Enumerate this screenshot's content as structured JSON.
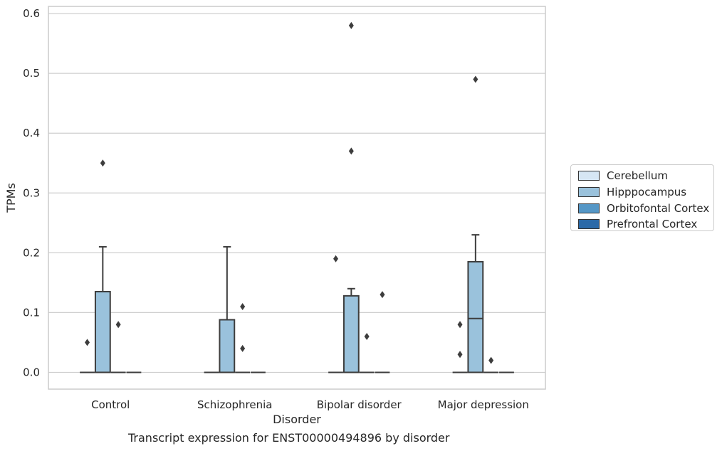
{
  "chart_data": {
    "type": "box",
    "xlabel": "Disorder",
    "ylabel": "TPMs",
    "ylim": [
      -0.028,
      0.612
    ],
    "yticks": [
      "0.0",
      "0.1",
      "0.2",
      "0.3",
      "0.4",
      "0.5",
      "0.6"
    ],
    "ytick_values": [
      0.0,
      0.1,
      0.2,
      0.3,
      0.4,
      0.5,
      0.6
    ],
    "grid": "horizontal",
    "legend_position": "right",
    "categories": [
      "Control",
      "Schizophrenia",
      "Bipolar disorder",
      "Major depression"
    ],
    "series": [
      {
        "name": "Cerebellum",
        "color": "#d6e6f4",
        "boxes": [
          {
            "q1": 0,
            "median": 0,
            "q3": 0,
            "whisker_low": 0,
            "whisker_high": 0,
            "outliers": [
              0.05
            ]
          },
          {
            "q1": 0,
            "median": 0,
            "q3": 0,
            "whisker_low": 0,
            "whisker_high": 0,
            "outliers": []
          },
          {
            "q1": 0,
            "median": 0,
            "q3": 0,
            "whisker_low": 0,
            "whisker_high": 0,
            "outliers": [
              0.19
            ]
          },
          {
            "q1": 0,
            "median": 0,
            "q3": 0,
            "whisker_low": 0,
            "whisker_high": 0,
            "outliers": [
              0.08,
              0.03
            ]
          }
        ]
      },
      {
        "name": "Hipppocampus",
        "color": "#9ac2dc",
        "boxes": [
          {
            "q1": 0,
            "median": 0,
            "q3": 0.135,
            "whisker_low": 0,
            "whisker_high": 0.21,
            "outliers": [
              0.35
            ]
          },
          {
            "q1": 0,
            "median": 0,
            "q3": 0.088,
            "whisker_low": 0,
            "whisker_high": 0.21,
            "outliers": []
          },
          {
            "q1": 0,
            "median": 0,
            "q3": 0.128,
            "whisker_low": 0,
            "whisker_high": 0.14,
            "outliers": [
              0.37,
              0.58
            ]
          },
          {
            "q1": 0,
            "median": 0.09,
            "q3": 0.185,
            "whisker_low": 0,
            "whisker_high": 0.23,
            "outliers": [
              0.49
            ]
          }
        ]
      },
      {
        "name": "Orbitofontal Cortex",
        "color": "#5597c6",
        "boxes": [
          {
            "q1": 0,
            "median": 0,
            "q3": 0,
            "whisker_low": 0,
            "whisker_high": 0,
            "outliers": [
              0.08
            ]
          },
          {
            "q1": 0,
            "median": 0,
            "q3": 0,
            "whisker_low": 0,
            "whisker_high": 0,
            "outliers": [
              0.11,
              0.04
            ]
          },
          {
            "q1": 0,
            "median": 0,
            "q3": 0,
            "whisker_low": 0,
            "whisker_high": 0,
            "outliers": [
              0.06
            ]
          },
          {
            "q1": 0,
            "median": 0,
            "q3": 0,
            "whisker_low": 0,
            "whisker_high": 0,
            "outliers": [
              0.02
            ]
          }
        ]
      },
      {
        "name": "Prefrontal Cortex",
        "color": "#2a69a8",
        "boxes": [
          {
            "q1": 0,
            "median": 0,
            "q3": 0,
            "whisker_low": 0,
            "whisker_high": 0,
            "outliers": []
          },
          {
            "q1": 0,
            "median": 0,
            "q3": 0,
            "whisker_low": 0,
            "whisker_high": 0,
            "outliers": []
          },
          {
            "q1": 0,
            "median": 0,
            "q3": 0,
            "whisker_low": 0,
            "whisker_high": 0,
            "outliers": [
              0.13
            ]
          },
          {
            "q1": 0,
            "median": 0,
            "q3": 0,
            "whisker_low": 0,
            "whisker_high": 0,
            "outliers": []
          }
        ]
      }
    ]
  },
  "caption": "Transcript expression for ENST00000494896 by disorder"
}
